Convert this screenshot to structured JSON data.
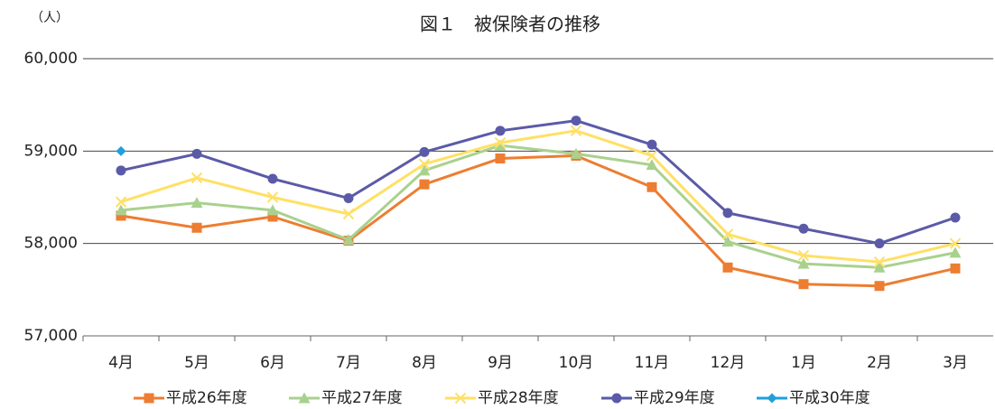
{
  "chart_data": {
    "type": "line",
    "title": "図１　被保険者の推移",
    "y_unit": "（人）",
    "categories": [
      "4月",
      "5月",
      "6月",
      "7月",
      "8月",
      "9月",
      "10月",
      "11月",
      "12月",
      "1月",
      "2月",
      "3月"
    ],
    "series": [
      {
        "name": "平成26年度",
        "color": "#ed7d31",
        "marker": "square",
        "values": [
          58300,
          58170,
          58290,
          58030,
          58640,
          58920,
          58950,
          58610,
          57740,
          57560,
          57540,
          57730
        ]
      },
      {
        "name": "平成27年度",
        "color": "#a9d18e",
        "marker": "triangle",
        "values": [
          58360,
          58440,
          58360,
          58040,
          58790,
          59060,
          58970,
          58850,
          58020,
          57780,
          57740,
          57900
        ]
      },
      {
        "name": "平成28年度",
        "color": "#ffe066",
        "marker": "x",
        "values": [
          58450,
          58710,
          58500,
          58320,
          58860,
          59090,
          59220,
          58950,
          58100,
          57870,
          57800,
          58000
        ]
      },
      {
        "name": "平成29年度",
        "color": "#5b5aa8",
        "marker": "circle",
        "values": [
          58790,
          58970,
          58700,
          58490,
          58990,
          59220,
          59330,
          59070,
          58330,
          58160,
          58000,
          58280
        ]
      },
      {
        "name": "平成30年度",
        "color": "#1ea0dc",
        "marker": "diamond",
        "values": [
          59000,
          null,
          null,
          null,
          null,
          null,
          null,
          null,
          null,
          null,
          null,
          null
        ]
      }
    ],
    "ylim": [
      57000,
      60000
    ],
    "yticks": [
      {
        "value": 57000,
        "label": "57,000"
      },
      {
        "value": 58000,
        "label": "58,000"
      },
      {
        "value": 59000,
        "label": "59,000"
      },
      {
        "value": 60000,
        "label": "60,000"
      }
    ],
    "grid": true,
    "legend": "bottom"
  }
}
